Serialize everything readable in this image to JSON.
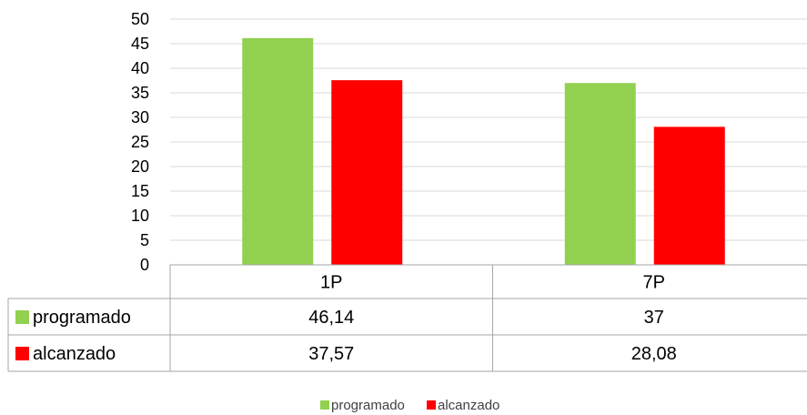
{
  "chart_data": {
    "type": "bar",
    "categories": [
      "1P",
      "7P"
    ],
    "series": [
      {
        "name": "programado",
        "values": [
          46.14,
          37
        ],
        "labels": [
          "46,14",
          "37"
        ],
        "color": "#92D050"
      },
      {
        "name": "alcanzado",
        "values": [
          37.57,
          28.08
        ],
        "labels": [
          "37,57",
          "28,08"
        ],
        "color": "#FF0000"
      }
    ],
    "ylim": [
      0,
      50
    ],
    "yticks": [
      "0",
      "5",
      "10",
      "15",
      "20",
      "25",
      "30",
      "35",
      "40",
      "45",
      "50"
    ],
    "grid": true,
    "data_table": true,
    "legend_position": "bottom"
  }
}
